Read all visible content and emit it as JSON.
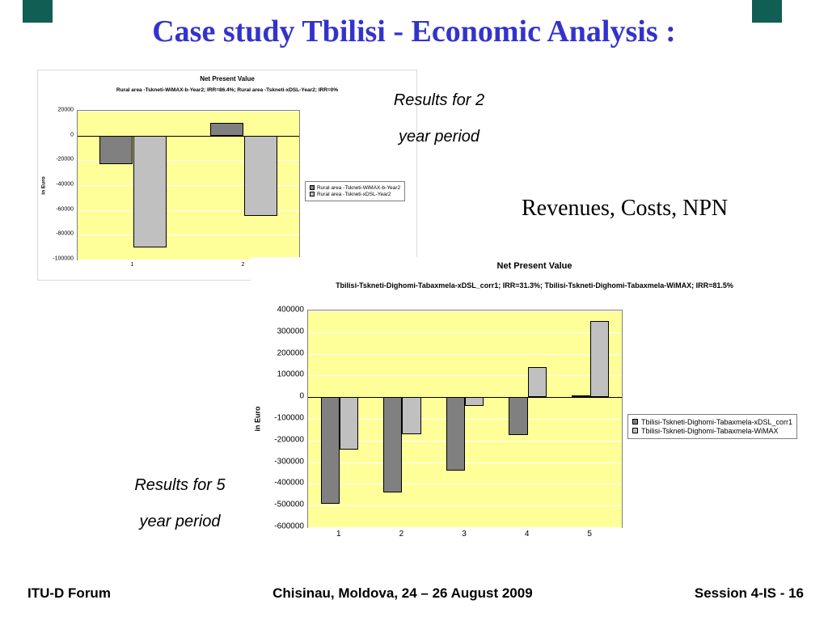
{
  "slide": {
    "title": "Case study Tbilisi - Economic Analysis :",
    "title_color": "#3333cc",
    "accent_square_color": "#115e55",
    "annotations": {
      "results2": {
        "line1": "Results for 2",
        "line2": "year period"
      },
      "revenues": "Revenues, Costs, NPN",
      "results5": {
        "line1": "Results for 5",
        "line2": "year period"
      }
    },
    "footer": {
      "left": "ITU-D Forum",
      "center": "Chisinau, Moldova, 24 – 26  August  2009",
      "right": "Session 4-IS  - 16"
    }
  },
  "chart_data": [
    {
      "type": "bar",
      "title": "Net Present Value",
      "subtitle": "Rural area -Tskneti-WiMAX-b-Year2; IRR=86.4%; Rural area -Tskneti-xDSL-Year2; IRR=0%",
      "ylabel": "in Euro",
      "categories": [
        "1",
        "2"
      ],
      "series": [
        {
          "name": "Rural area -Tskneti-WiMAX-b-Year2",
          "color": "#808080",
          "values": [
            -23000,
            10000
          ]
        },
        {
          "name": "Rural area -Tskneti-xDSL-Year2",
          "color": "#c0c0c0",
          "values": [
            -90000,
            -65000
          ]
        }
      ],
      "ylim": [
        -100000,
        20000
      ],
      "ytick": 20000,
      "plot_bg": "#ffff99",
      "grid": true,
      "legend_position": "right"
    },
    {
      "type": "bar",
      "title": "Net Present Value",
      "subtitle": "Tbilisi-Tskneti-Dighomi-Tabaxmela-xDSL_corr1; IRR=31.3%; Tbilisi-Tskneti-Dighomi-Tabaxmela-WiMAX; IRR=81.5%",
      "ylabel": "in Euro",
      "categories": [
        "1",
        "2",
        "3",
        "4",
        "5"
      ],
      "series": [
        {
          "name": "Tbilisi-Tskneti-Dighomi-Tabaxmela-xDSL_corr1",
          "color": "#808080",
          "values": [
            -490000,
            -440000,
            -340000,
            -175000,
            10000
          ]
        },
        {
          "name": "Tbilisi-Tskneti-Dighomi-Tabaxmela-WiMAX",
          "color": "#c0c0c0",
          "values": [
            -240000,
            -170000,
            -40000,
            140000,
            350000
          ]
        }
      ],
      "ylim": [
        -600000,
        400000
      ],
      "ytick": 100000,
      "plot_bg": "#ffff99",
      "grid": true,
      "legend_position": "right"
    }
  ]
}
